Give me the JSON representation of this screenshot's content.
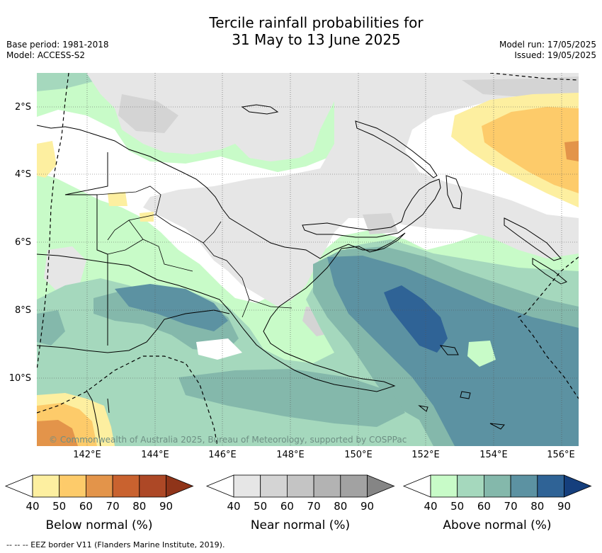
{
  "title_line1": "Tercile rainfall probabilities for",
  "title_line2": "31 May to 13 June 2025",
  "meta_left": {
    "base_period": "Base period: 1981-2018",
    "model": "Model: ACCESS-S2"
  },
  "meta_right": {
    "model_run": "Model run: 17/05/2025",
    "issued": "Issued: 19/05/2025"
  },
  "lat_labels": [
    "2°S",
    "4°S",
    "6°S",
    "8°S",
    "10°S"
  ],
  "lon_labels": [
    "142°E",
    "144°E",
    "146°E",
    "148°E",
    "150°E",
    "152°E",
    "154°E",
    "156°E"
  ],
  "credit": "© Commonwealth of Australia 2025, Bureau of Meteorology, supported by COSPPac",
  "scales": [
    {
      "name": "Below normal (%)",
      "ticks": [
        "40",
        "50",
        "60",
        "70",
        "80",
        "90"
      ],
      "colors": [
        "#ffffff",
        "#fdefa0",
        "#fdcb6a",
        "#e3944a",
        "#c9622f",
        "#ad4826",
        "#8f3419"
      ]
    },
    {
      "name": "Near normal (%)",
      "ticks": [
        "40",
        "50",
        "60",
        "70",
        "80",
        "90"
      ],
      "colors": [
        "#ffffff",
        "#e6e6e6",
        "#d4d4d4",
        "#c4c4c4",
        "#b3b3b3",
        "#a2a2a2",
        "#858585"
      ]
    },
    {
      "name": "Above normal (%)",
      "ticks": [
        "40",
        "50",
        "60",
        "70",
        "80",
        "90"
      ],
      "colors": [
        "#ffffff",
        "#c8fbc8",
        "#a5d8bd",
        "#84b8ab",
        "#5c92a2",
        "#2f6396",
        "#153f7d"
      ]
    }
  ],
  "footnote": "-- -- -- EEZ border V11 (Flanders Marine Institute, 2019)."
}
